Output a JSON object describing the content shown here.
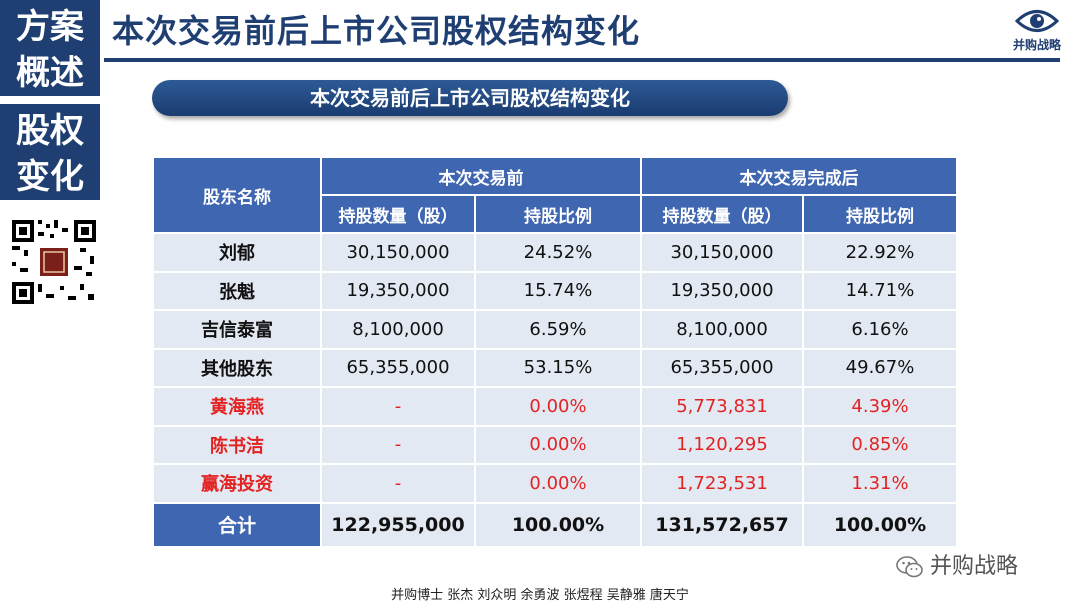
{
  "sidebar": {
    "block1": [
      "方案",
      "概述"
    ],
    "block2": [
      "股权",
      "变化"
    ]
  },
  "header": {
    "title": "本次交易前后上市公司股权结构变化",
    "logo_text": "并购战略"
  },
  "section": {
    "title": "本次交易前后上市公司股权结构变化"
  },
  "table": {
    "header_name": "股东名称",
    "group_before": "本次交易前",
    "group_after": "本次交易完成后",
    "col_shares": "持股数量（股）",
    "col_ratio": "持股比例",
    "rows": [
      {
        "name": "刘郁",
        "before_shares": "30,150,000",
        "before_ratio": "24.52%",
        "after_shares": "30,150,000",
        "after_ratio": "22.92%"
      },
      {
        "name": "张魁",
        "before_shares": "19,350,000",
        "before_ratio": "15.74%",
        "after_shares": "19,350,000",
        "after_ratio": "14.71%"
      },
      {
        "name": "吉信泰富",
        "before_shares": "8,100,000",
        "before_ratio": "6.59%",
        "after_shares": "8,100,000",
        "after_ratio": "6.16%"
      },
      {
        "name": "其他股东",
        "before_shares": "65,355,000",
        "before_ratio": "53.15%",
        "after_shares": "65,355,000",
        "after_ratio": "49.67%"
      },
      {
        "name": "黄海燕",
        "before_shares": "-",
        "before_ratio": "0.00%",
        "after_shares": "5,773,831",
        "after_ratio": "4.39%"
      },
      {
        "name": "陈书洁",
        "before_shares": "-",
        "before_ratio": "0.00%",
        "after_shares": "1,120,295",
        "after_ratio": "0.85%"
      },
      {
        "name": "赢海投资",
        "before_shares": "-",
        "before_ratio": "0.00%",
        "after_shares": "1,723,531",
        "after_ratio": "1.31%"
      }
    ],
    "total": {
      "name": "合计",
      "before_shares": "122,955,000",
      "before_ratio": "100.00%",
      "after_shares": "131,572,657",
      "after_ratio": "100.00%"
    }
  },
  "watermark": "并购战略",
  "footer": "并购博士 张杰 刘众明 余勇波 张煜程 吴静雅 唐天宁",
  "colors": {
    "navy": "#1f3f73",
    "table_header": "#3f66b0",
    "cell": "#e3e9f3",
    "highlight": "#e32222"
  }
}
